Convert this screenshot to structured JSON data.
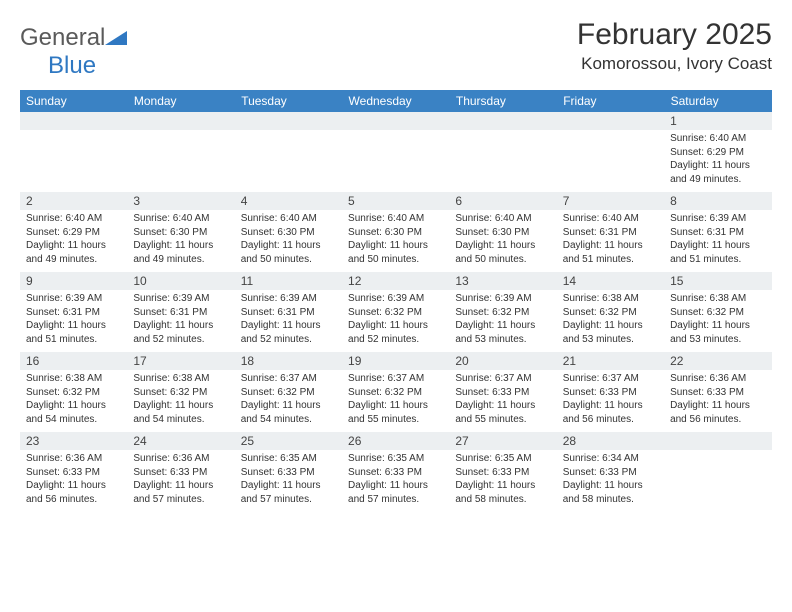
{
  "logo": {
    "text_general": "General",
    "text_blue": "Blue",
    "shape_color": "#2f78c2"
  },
  "title": {
    "month": "February 2025",
    "location": "Komorossou, Ivory Coast"
  },
  "colors": {
    "header_bg": "#3a82c4",
    "header_text": "#ffffff",
    "daynum_bg": "#eceff1",
    "page_bg": "#ffffff",
    "text": "#333333"
  },
  "weekdays": [
    "Sunday",
    "Monday",
    "Tuesday",
    "Wednesday",
    "Thursday",
    "Friday",
    "Saturday"
  ],
  "weeks": [
    [
      {
        "n": "",
        "t": ""
      },
      {
        "n": "",
        "t": ""
      },
      {
        "n": "",
        "t": ""
      },
      {
        "n": "",
        "t": ""
      },
      {
        "n": "",
        "t": ""
      },
      {
        "n": "",
        "t": ""
      },
      {
        "n": "1",
        "t": "Sunrise: 6:40 AM\nSunset: 6:29 PM\nDaylight: 11 hours and 49 minutes."
      }
    ],
    [
      {
        "n": "2",
        "t": "Sunrise: 6:40 AM\nSunset: 6:29 PM\nDaylight: 11 hours and 49 minutes."
      },
      {
        "n": "3",
        "t": "Sunrise: 6:40 AM\nSunset: 6:30 PM\nDaylight: 11 hours and 49 minutes."
      },
      {
        "n": "4",
        "t": "Sunrise: 6:40 AM\nSunset: 6:30 PM\nDaylight: 11 hours and 50 minutes."
      },
      {
        "n": "5",
        "t": "Sunrise: 6:40 AM\nSunset: 6:30 PM\nDaylight: 11 hours and 50 minutes."
      },
      {
        "n": "6",
        "t": "Sunrise: 6:40 AM\nSunset: 6:30 PM\nDaylight: 11 hours and 50 minutes."
      },
      {
        "n": "7",
        "t": "Sunrise: 6:40 AM\nSunset: 6:31 PM\nDaylight: 11 hours and 51 minutes."
      },
      {
        "n": "8",
        "t": "Sunrise: 6:39 AM\nSunset: 6:31 PM\nDaylight: 11 hours and 51 minutes."
      }
    ],
    [
      {
        "n": "9",
        "t": "Sunrise: 6:39 AM\nSunset: 6:31 PM\nDaylight: 11 hours and 51 minutes."
      },
      {
        "n": "10",
        "t": "Sunrise: 6:39 AM\nSunset: 6:31 PM\nDaylight: 11 hours and 52 minutes."
      },
      {
        "n": "11",
        "t": "Sunrise: 6:39 AM\nSunset: 6:31 PM\nDaylight: 11 hours and 52 minutes."
      },
      {
        "n": "12",
        "t": "Sunrise: 6:39 AM\nSunset: 6:32 PM\nDaylight: 11 hours and 52 minutes."
      },
      {
        "n": "13",
        "t": "Sunrise: 6:39 AM\nSunset: 6:32 PM\nDaylight: 11 hours and 53 minutes."
      },
      {
        "n": "14",
        "t": "Sunrise: 6:38 AM\nSunset: 6:32 PM\nDaylight: 11 hours and 53 minutes."
      },
      {
        "n": "15",
        "t": "Sunrise: 6:38 AM\nSunset: 6:32 PM\nDaylight: 11 hours and 53 minutes."
      }
    ],
    [
      {
        "n": "16",
        "t": "Sunrise: 6:38 AM\nSunset: 6:32 PM\nDaylight: 11 hours and 54 minutes."
      },
      {
        "n": "17",
        "t": "Sunrise: 6:38 AM\nSunset: 6:32 PM\nDaylight: 11 hours and 54 minutes."
      },
      {
        "n": "18",
        "t": "Sunrise: 6:37 AM\nSunset: 6:32 PM\nDaylight: 11 hours and 54 minutes."
      },
      {
        "n": "19",
        "t": "Sunrise: 6:37 AM\nSunset: 6:32 PM\nDaylight: 11 hours and 55 minutes."
      },
      {
        "n": "20",
        "t": "Sunrise: 6:37 AM\nSunset: 6:33 PM\nDaylight: 11 hours and 55 minutes."
      },
      {
        "n": "21",
        "t": "Sunrise: 6:37 AM\nSunset: 6:33 PM\nDaylight: 11 hours and 56 minutes."
      },
      {
        "n": "22",
        "t": "Sunrise: 6:36 AM\nSunset: 6:33 PM\nDaylight: 11 hours and 56 minutes."
      }
    ],
    [
      {
        "n": "23",
        "t": "Sunrise: 6:36 AM\nSunset: 6:33 PM\nDaylight: 11 hours and 56 minutes."
      },
      {
        "n": "24",
        "t": "Sunrise: 6:36 AM\nSunset: 6:33 PM\nDaylight: 11 hours and 57 minutes."
      },
      {
        "n": "25",
        "t": "Sunrise: 6:35 AM\nSunset: 6:33 PM\nDaylight: 11 hours and 57 minutes."
      },
      {
        "n": "26",
        "t": "Sunrise: 6:35 AM\nSunset: 6:33 PM\nDaylight: 11 hours and 57 minutes."
      },
      {
        "n": "27",
        "t": "Sunrise: 6:35 AM\nSunset: 6:33 PM\nDaylight: 11 hours and 58 minutes."
      },
      {
        "n": "28",
        "t": "Sunrise: 6:34 AM\nSunset: 6:33 PM\nDaylight: 11 hours and 58 minutes."
      },
      {
        "n": "",
        "t": ""
      }
    ]
  ]
}
